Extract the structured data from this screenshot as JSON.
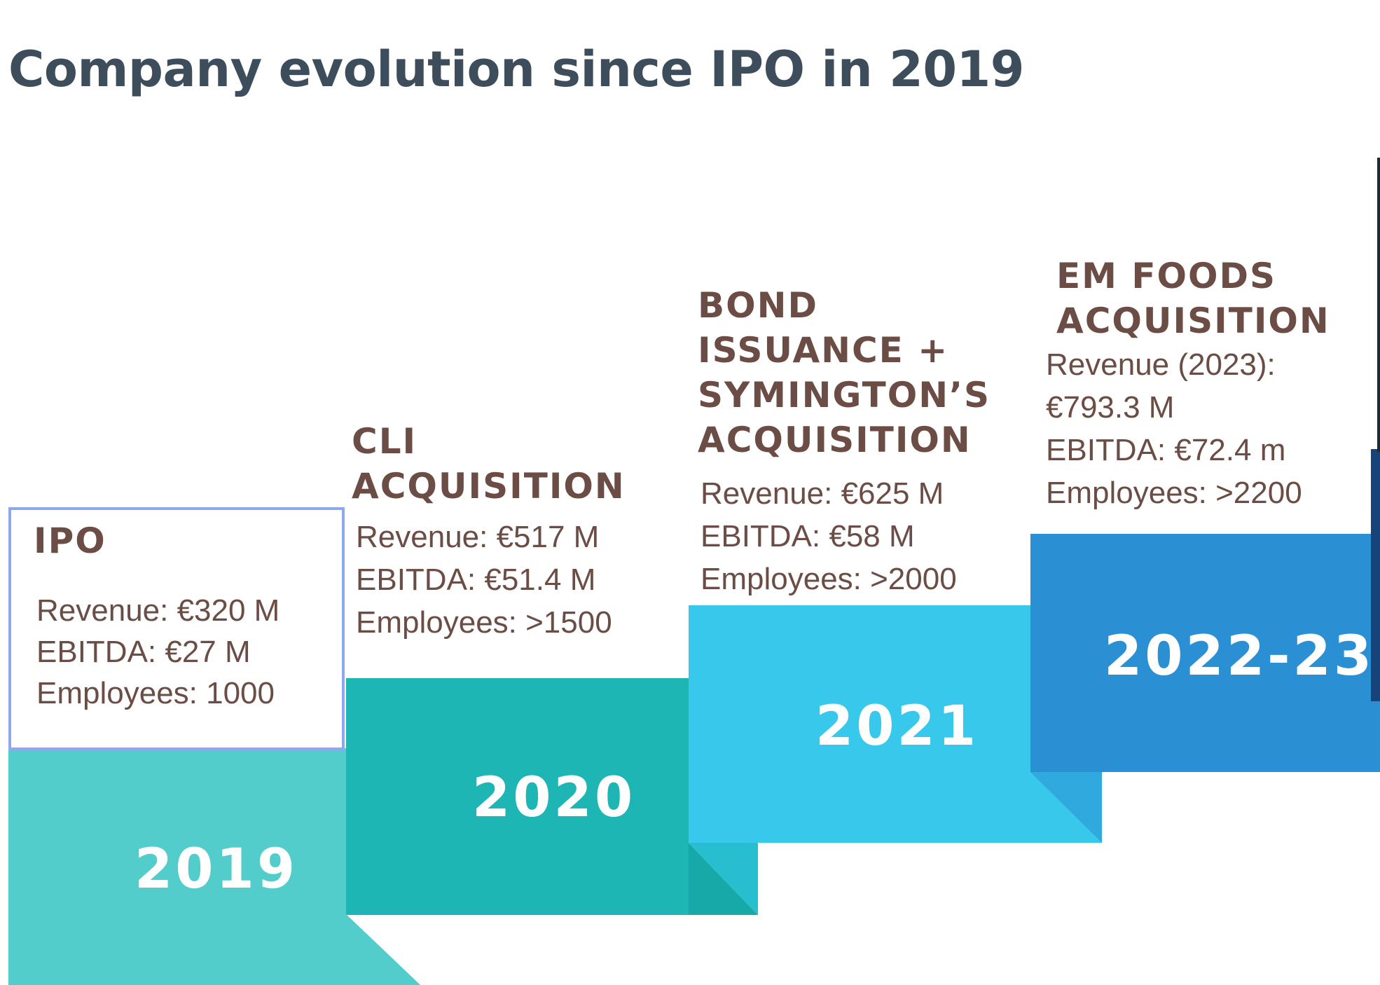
{
  "title": "Company evolution since IPO in 2019",
  "colors": {
    "title": "#3d4d5b",
    "text": "#6b4d45",
    "step_2019": "#52cdcb",
    "step_2020": "#1db6b4",
    "step_2021": "#38c8ec",
    "step_2022_23": "#2b8fd4",
    "step_next": "#17437b",
    "ipo_box_border": "#8fa7f0"
  },
  "steps": [
    {
      "year": "2019",
      "heading": [
        "IPO"
      ],
      "stats": [
        "Revenue: €320 M",
        "EBITDA: €27 M",
        "Employees: 1000"
      ]
    },
    {
      "year": "2020",
      "heading": [
        "CLI",
        "ACQUISITION"
      ],
      "stats": [
        "Revenue: €517 M",
        "EBITDA: €51.4 M",
        "Employees: >1500"
      ]
    },
    {
      "year": "2021",
      "heading": [
        "BOND",
        "ISSUANCE +",
        "SYMINGTON’S",
        "ACQUISITION"
      ],
      "stats": [
        "Revenue: €625 M",
        "EBITDA: €58 M",
        "Employees: >2000"
      ]
    },
    {
      "year": "2022-23",
      "heading": [
        "EM FOODS",
        "ACQUISITION"
      ],
      "stats": [
        "Revenue (2023):",
        "€793.3 M",
        "EBITDA: €72.4 m",
        "Employees: >2200"
      ]
    }
  ]
}
